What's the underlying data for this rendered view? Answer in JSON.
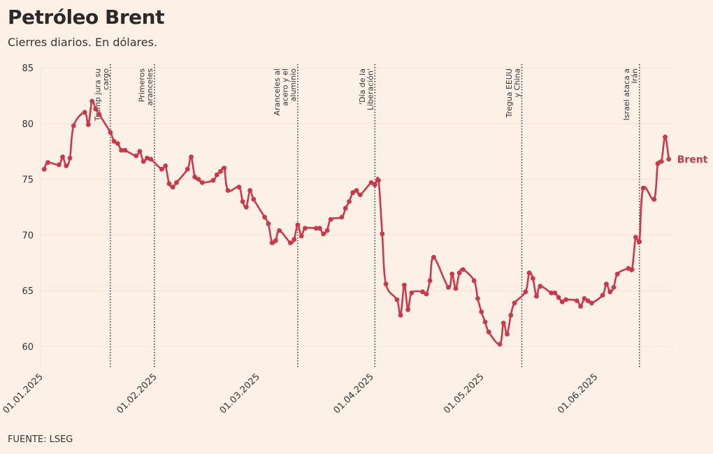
{
  "title": "Petróleo Brent",
  "subtitle": "Cierres diarios. En dólares.",
  "source": "FUENTE: LSEG",
  "colors": {
    "background": "#fdf0e6",
    "series": "#c9394a",
    "grid": "#f6e2d6",
    "event_line": "#3a3a3a",
    "text": "#333333"
  },
  "chart_data": {
    "type": "line",
    "ylim": [
      58,
      85
    ],
    "yticks": [
      60,
      65,
      70,
      75,
      80,
      85
    ],
    "xticks": [
      "01.01.2025",
      "01.02.2025",
      "01.03.2025",
      "01.04.2025",
      "01.05.2025",
      "01.06.2025"
    ],
    "grid": true,
    "series": [
      {
        "name": "Brent",
        "points": [
          [
            "2025-01-02",
            75.9
          ],
          [
            "2025-01-03",
            76.5
          ],
          [
            "2025-01-06",
            76.3
          ],
          [
            "2025-01-07",
            77.0
          ],
          [
            "2025-01-08",
            76.2
          ],
          [
            "2025-01-09",
            76.9
          ],
          [
            "2025-01-10",
            79.8
          ],
          [
            "2025-01-13",
            81.0
          ],
          [
            "2025-01-14",
            79.9
          ],
          [
            "2025-01-15",
            82.0
          ],
          [
            "2025-01-16",
            81.3
          ],
          [
            "2025-01-17",
            80.8
          ],
          [
            "2025-01-20",
            79.2
          ],
          [
            "2025-01-21",
            78.4
          ],
          [
            "2025-01-22",
            78.2
          ],
          [
            "2025-01-23",
            77.6
          ],
          [
            "2025-01-24",
            77.6
          ],
          [
            "2025-01-27",
            77.1
          ],
          [
            "2025-01-28",
            77.5
          ],
          [
            "2025-01-29",
            76.6
          ],
          [
            "2025-01-30",
            76.9
          ],
          [
            "2025-01-31",
            76.8
          ],
          [
            "2025-02-03",
            75.9
          ],
          [
            "2025-02-04",
            76.2
          ],
          [
            "2025-02-05",
            74.6
          ],
          [
            "2025-02-06",
            74.3
          ],
          [
            "2025-02-07",
            74.7
          ],
          [
            "2025-02-10",
            75.9
          ],
          [
            "2025-02-11",
            77.0
          ],
          [
            "2025-02-12",
            75.2
          ],
          [
            "2025-02-13",
            75.0
          ],
          [
            "2025-02-14",
            74.7
          ],
          [
            "2025-02-17",
            74.9
          ],
          [
            "2025-02-18",
            75.4
          ],
          [
            "2025-02-19",
            75.7
          ],
          [
            "2025-02-20",
            76.0
          ],
          [
            "2025-02-21",
            74.0
          ],
          [
            "2025-02-24",
            74.3
          ],
          [
            "2025-02-25",
            73.0
          ],
          [
            "2025-02-26",
            72.5
          ],
          [
            "2025-02-27",
            74.0
          ],
          [
            "2025-02-28",
            73.2
          ],
          [
            "2025-03-03",
            71.6
          ],
          [
            "2025-03-04",
            71.0
          ],
          [
            "2025-03-05",
            69.3
          ],
          [
            "2025-03-06",
            69.5
          ],
          [
            "2025-03-07",
            70.4
          ],
          [
            "2025-03-10",
            69.3
          ],
          [
            "2025-03-11",
            69.6
          ],
          [
            "2025-03-12",
            70.9
          ],
          [
            "2025-03-13",
            69.9
          ],
          [
            "2025-03-14",
            70.6
          ],
          [
            "2025-03-17",
            70.6
          ],
          [
            "2025-03-18",
            70.6
          ],
          [
            "2025-03-19",
            70.1
          ],
          [
            "2025-03-20",
            70.4
          ],
          [
            "2025-03-21",
            71.4
          ],
          [
            "2025-03-24",
            71.6
          ],
          [
            "2025-03-25",
            72.4
          ],
          [
            "2025-03-26",
            73.0
          ],
          [
            "2025-03-27",
            73.8
          ],
          [
            "2025-03-28",
            74.0
          ],
          [
            "2025-03-29",
            73.6
          ],
          [
            "2025-04-01",
            74.7
          ],
          [
            "2025-04-02",
            74.5
          ],
          [
            "2025-04-03",
            74.9
          ],
          [
            "2025-04-04",
            70.1
          ],
          [
            "2025-04-05",
            65.6
          ],
          [
            "2025-04-08",
            64.2
          ],
          [
            "2025-04-09",
            62.8
          ],
          [
            "2025-04-10",
            65.5
          ],
          [
            "2025-04-11",
            63.3
          ],
          [
            "2025-04-12",
            64.8
          ],
          [
            "2025-04-15",
            64.9
          ],
          [
            "2025-04-16",
            64.7
          ],
          [
            "2025-04-17",
            65.9
          ],
          [
            "2025-04-18",
            68.0
          ],
          [
            "2025-04-22",
            65.3
          ],
          [
            "2025-04-23",
            66.5
          ],
          [
            "2025-04-24",
            65.2
          ],
          [
            "2025-04-25",
            66.6
          ],
          [
            "2025-04-26",
            66.9
          ],
          [
            "2025-04-29",
            65.9
          ],
          [
            "2025-04-30",
            64.3
          ],
          [
            "2025-05-01",
            63.1
          ],
          [
            "2025-05-02",
            62.2
          ],
          [
            "2025-05-03",
            61.3
          ],
          [
            "2025-05-06",
            60.2
          ],
          [
            "2025-05-07",
            62.1
          ],
          [
            "2025-05-08",
            61.1
          ],
          [
            "2025-05-09",
            62.8
          ],
          [
            "2025-05-10",
            63.9
          ],
          [
            "2025-05-13",
            64.9
          ],
          [
            "2025-05-14",
            66.6
          ],
          [
            "2025-05-15",
            66.1
          ],
          [
            "2025-05-16",
            64.5
          ],
          [
            "2025-05-17",
            65.4
          ],
          [
            "2025-05-20",
            64.8
          ],
          [
            "2025-05-21",
            64.8
          ],
          [
            "2025-05-22",
            64.4
          ],
          [
            "2025-05-23",
            64.0
          ],
          [
            "2025-05-24",
            64.2
          ],
          [
            "2025-05-27",
            64.1
          ],
          [
            "2025-05-28",
            63.6
          ],
          [
            "2025-05-29",
            64.3
          ],
          [
            "2025-05-30",
            64.1
          ],
          [
            "2025-05-31",
            63.9
          ],
          [
            "2025-06-03",
            64.6
          ],
          [
            "2025-06-04",
            65.6
          ],
          [
            "2025-06-05",
            64.9
          ],
          [
            "2025-06-06",
            65.3
          ],
          [
            "2025-06-07",
            66.5
          ],
          [
            "2025-06-10",
            67.0
          ],
          [
            "2025-06-11",
            66.9
          ],
          [
            "2025-06-12",
            69.8
          ],
          [
            "2025-06-13",
            69.4
          ],
          [
            "2025-06-14",
            74.2
          ],
          [
            "2025-06-17",
            73.2
          ],
          [
            "2025-06-18",
            76.4
          ],
          [
            "2025-06-19",
            76.6
          ],
          [
            "2025-06-20",
            78.8
          ],
          [
            "2025-06-21",
            76.8
          ]
        ]
      }
    ],
    "events": [
      {
        "date": "2025-01-20",
        "label": [
          "Trump jura su",
          "cargo"
        ]
      },
      {
        "date": "2025-02-01",
        "label": [
          "Primeros",
          "aranceles"
        ]
      },
      {
        "date": "2025-03-12",
        "label": [
          "Aranceles al",
          "acero y el",
          "aluminio"
        ]
      },
      {
        "date": "2025-04-02",
        "label": [
          "'Día de la",
          "Liberación'"
        ]
      },
      {
        "date": "2025-05-12",
        "label": [
          "Tregua EEUU",
          "y China"
        ]
      },
      {
        "date": "2025-06-13",
        "label": [
          "Israel ataca a",
          "Irán"
        ]
      }
    ]
  }
}
